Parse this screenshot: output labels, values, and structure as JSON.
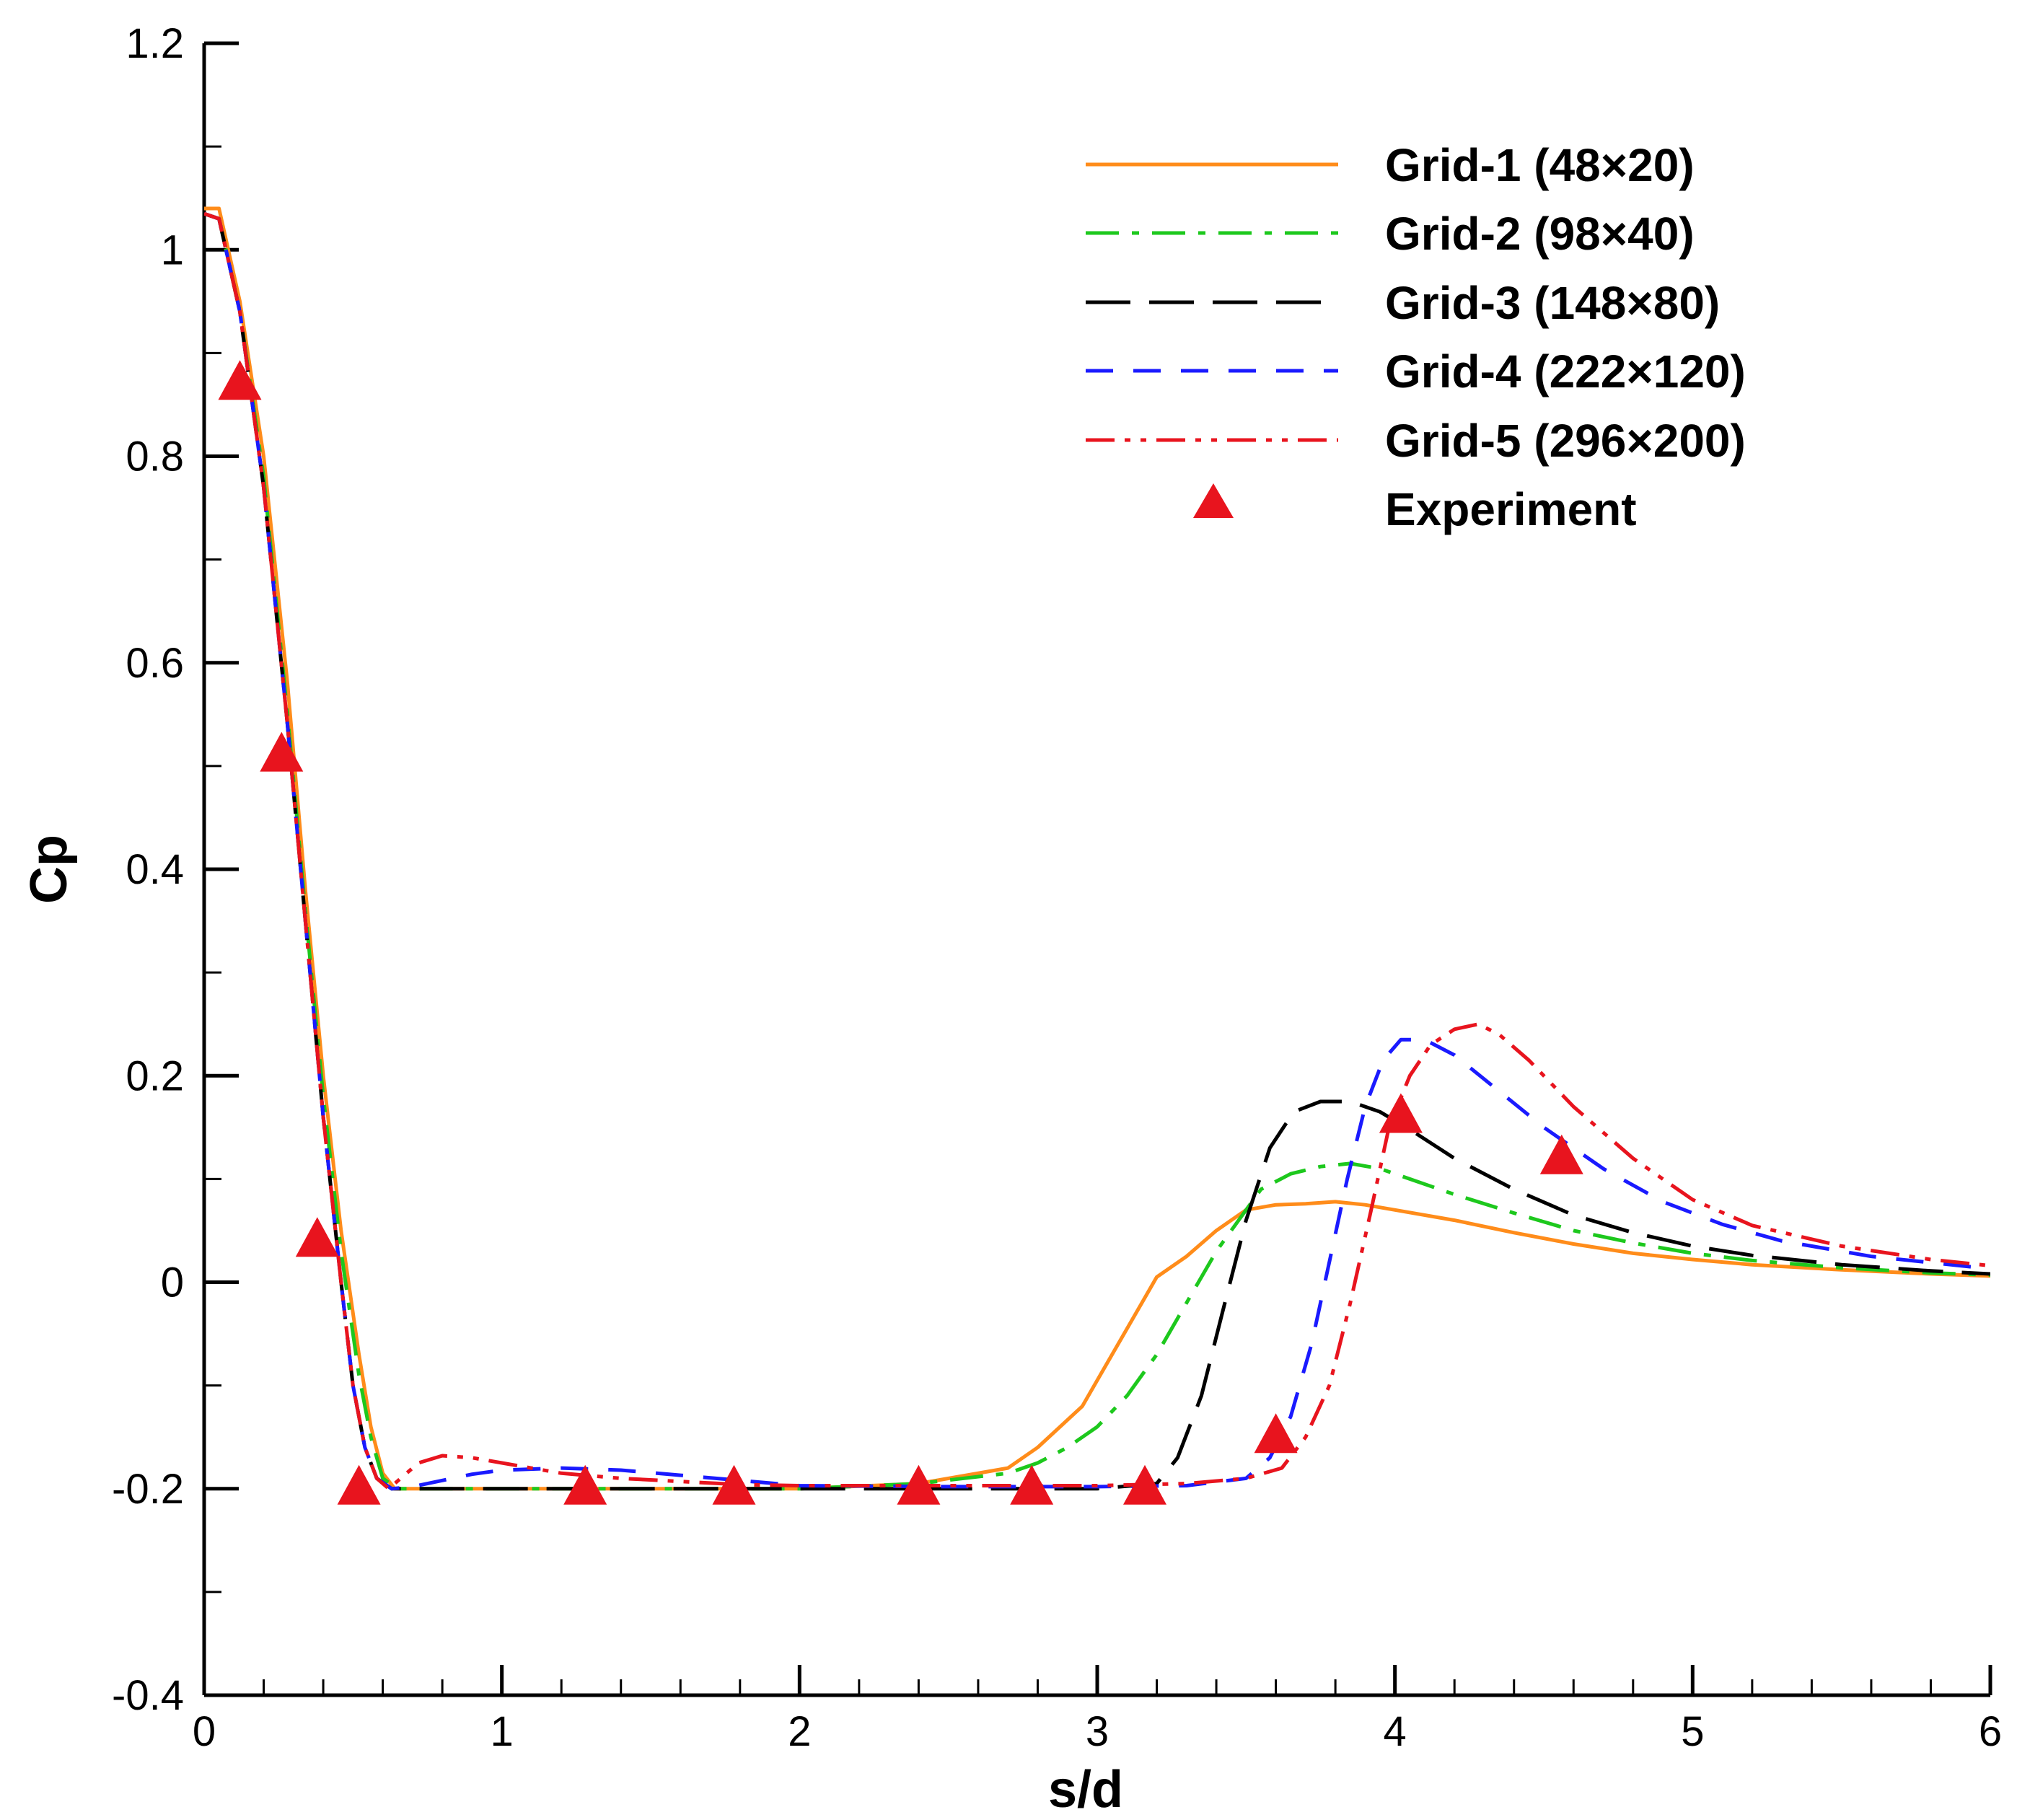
{
  "chart_data": {
    "type": "line",
    "title": "",
    "xlabel": "s/d",
    "ylabel": "Cp",
    "xlim": [
      0,
      6
    ],
    "ylim": [
      -0.4,
      1.2
    ],
    "xticks": [
      0,
      1,
      2,
      3,
      4,
      5,
      6
    ],
    "xtick_labels": [
      "0",
      "1",
      "2",
      "3",
      "4",
      "5",
      "6"
    ],
    "xminor_step": 0.2,
    "yticks": [
      -0.4,
      -0.2,
      0,
      0.2,
      0.4,
      0.6,
      0.8,
      1,
      1.2
    ],
    "ytick_labels": [
      "-0.4",
      "-0.2",
      "0",
      "0.2",
      "0.4",
      "0.6",
      "0.8",
      "1",
      "1.2"
    ],
    "yminor_step": 0.1,
    "grid": false,
    "legend_position": "top-right",
    "series": [
      {
        "name": "Grid-1 (48×20)",
        "color": "#FF8C1A",
        "style": "solid",
        "x": [
          0,
          0.05,
          0.12,
          0.2,
          0.28,
          0.34,
          0.4,
          0.46,
          0.52,
          0.56,
          0.6,
          0.64,
          0.7,
          0.9,
          1.2,
          1.5,
          2.0,
          2.4,
          2.7,
          2.8,
          2.95,
          3.05,
          3.15,
          3.2,
          3.3,
          3.4,
          3.5,
          3.6,
          3.7,
          3.8,
          3.9,
          4.0,
          4.2,
          4.4,
          4.6,
          4.8,
          5.0,
          5.2,
          5.5,
          5.8,
          6.0
        ],
        "y": [
          1.04,
          1.04,
          0.95,
          0.8,
          0.58,
          0.38,
          0.2,
          0.05,
          -0.07,
          -0.14,
          -0.185,
          -0.2,
          -0.2,
          -0.2,
          -0.2,
          -0.2,
          -0.2,
          -0.195,
          -0.18,
          -0.16,
          -0.12,
          -0.07,
          -0.02,
          0.005,
          0.025,
          0.05,
          0.07,
          0.075,
          0.076,
          0.078,
          0.075,
          0.07,
          0.06,
          0.048,
          0.037,
          0.028,
          0.022,
          0.017,
          0.012,
          0.008,
          0.006
        ]
      },
      {
        "name": "Grid-2 (98×40)",
        "color": "#1DC81D",
        "style": "dashdot",
        "x": [
          0,
          0.05,
          0.12,
          0.2,
          0.28,
          0.34,
          0.4,
          0.46,
          0.52,
          0.56,
          0.6,
          0.65,
          0.7,
          0.9,
          1.2,
          1.5,
          2.0,
          2.4,
          2.7,
          2.8,
          2.9,
          3.0,
          3.1,
          3.2,
          3.3,
          3.4,
          3.5,
          3.55,
          3.65,
          3.75,
          3.85,
          3.95,
          4.05,
          4.2,
          4.4,
          4.6,
          4.8,
          5.0,
          5.2,
          5.5,
          5.8,
          6.0
        ],
        "y": [
          1.035,
          1.03,
          0.94,
          0.78,
          0.55,
          0.36,
          0.18,
          0.03,
          -0.09,
          -0.15,
          -0.19,
          -0.2,
          -0.2,
          -0.2,
          -0.2,
          -0.2,
          -0.2,
          -0.195,
          -0.185,
          -0.175,
          -0.16,
          -0.14,
          -0.11,
          -0.07,
          -0.02,
          0.03,
          0.07,
          0.09,
          0.105,
          0.112,
          0.115,
          0.11,
          0.1,
          0.085,
          0.067,
          0.05,
          0.038,
          0.028,
          0.021,
          0.014,
          0.009,
          0.007
        ]
      },
      {
        "name": "Grid-3 (148×80)",
        "color": "#000000",
        "style": "longdash",
        "x": [
          0,
          0.05,
          0.12,
          0.2,
          0.28,
          0.34,
          0.4,
          0.46,
          0.5,
          0.54,
          0.58,
          0.63,
          0.7,
          0.9,
          1.2,
          1.5,
          2.0,
          2.5,
          3.0,
          3.2,
          3.27,
          3.35,
          3.42,
          3.5,
          3.58,
          3.66,
          3.75,
          3.85,
          3.95,
          4.05,
          4.2,
          4.4,
          4.6,
          4.8,
          5.0,
          5.2,
          5.5,
          5.8,
          6.0
        ],
        "y": [
          1.035,
          1.03,
          0.94,
          0.77,
          0.54,
          0.35,
          0.16,
          0.0,
          -0.1,
          -0.16,
          -0.19,
          -0.2,
          -0.2,
          -0.2,
          -0.2,
          -0.2,
          -0.2,
          -0.2,
          -0.2,
          -0.195,
          -0.17,
          -0.11,
          -0.03,
          0.06,
          0.13,
          0.165,
          0.175,
          0.175,
          0.165,
          0.148,
          0.12,
          0.09,
          0.065,
          0.048,
          0.035,
          0.026,
          0.017,
          0.011,
          0.008
        ]
      },
      {
        "name": "Grid-4 (222×120)",
        "color": "#1A1AFF",
        "style": "dashed",
        "x": [
          0,
          0.05,
          0.12,
          0.2,
          0.28,
          0.34,
          0.4,
          0.46,
          0.5,
          0.54,
          0.58,
          0.63,
          0.7,
          0.8,
          0.9,
          1.0,
          1.2,
          1.4,
          1.6,
          1.8,
          2.0,
          2.5,
          3.0,
          3.3,
          3.5,
          3.58,
          3.65,
          3.72,
          3.78,
          3.84,
          3.9,
          3.96,
          4.02,
          4.1,
          4.2,
          4.35,
          4.5,
          4.7,
          4.9,
          5.1,
          5.3,
          5.6,
          6.0
        ],
        "y": [
          1.035,
          1.03,
          0.94,
          0.77,
          0.54,
          0.35,
          0.16,
          0.0,
          -0.1,
          -0.16,
          -0.19,
          -0.2,
          -0.198,
          -0.192,
          -0.186,
          -0.182,
          -0.18,
          -0.182,
          -0.187,
          -0.192,
          -0.197,
          -0.198,
          -0.198,
          -0.197,
          -0.19,
          -0.17,
          -0.13,
          -0.06,
          0.02,
          0.1,
          0.17,
          0.215,
          0.235,
          0.235,
          0.22,
          0.185,
          0.15,
          0.11,
          0.078,
          0.056,
          0.04,
          0.025,
          0.013
        ]
      },
      {
        "name": "Grid-5 (296×200)",
        "color": "#E8141E",
        "style": "dashdotdot",
        "x": [
          0,
          0.05,
          0.12,
          0.2,
          0.28,
          0.34,
          0.4,
          0.46,
          0.5,
          0.54,
          0.58,
          0.62,
          0.66,
          0.72,
          0.8,
          0.9,
          1.0,
          1.2,
          1.4,
          1.6,
          1.8,
          2.0,
          2.5,
          3.0,
          3.3,
          3.5,
          3.62,
          3.7,
          3.78,
          3.85,
          3.92,
          3.98,
          4.05,
          4.12,
          4.2,
          4.28,
          4.35,
          4.45,
          4.6,
          4.8,
          5.0,
          5.2,
          5.5,
          5.8,
          6.0
        ],
        "y": [
          1.035,
          1.03,
          0.94,
          0.77,
          0.54,
          0.35,
          0.16,
          0.0,
          -0.1,
          -0.16,
          -0.19,
          -0.2,
          -0.19,
          -0.175,
          -0.168,
          -0.17,
          -0.175,
          -0.185,
          -0.19,
          -0.193,
          -0.196,
          -0.197,
          -0.197,
          -0.197,
          -0.195,
          -0.19,
          -0.18,
          -0.15,
          -0.1,
          -0.02,
          0.07,
          0.15,
          0.2,
          0.23,
          0.245,
          0.25,
          0.24,
          0.215,
          0.17,
          0.12,
          0.08,
          0.055,
          0.035,
          0.022,
          0.016
        ]
      }
    ],
    "experiment": {
      "name": "Experiment",
      "color": "#E8141E",
      "marker": "triangle",
      "x": [
        0.12,
        0.26,
        0.38,
        0.52,
        1.28,
        1.78,
        2.4,
        2.78,
        3.16,
        3.6,
        4.02,
        4.56
      ],
      "y": [
        0.87,
        0.51,
        0.04,
        -0.2,
        -0.2,
        -0.2,
        -0.2,
        -0.2,
        -0.2,
        -0.15,
        0.16,
        0.12
      ]
    }
  }
}
